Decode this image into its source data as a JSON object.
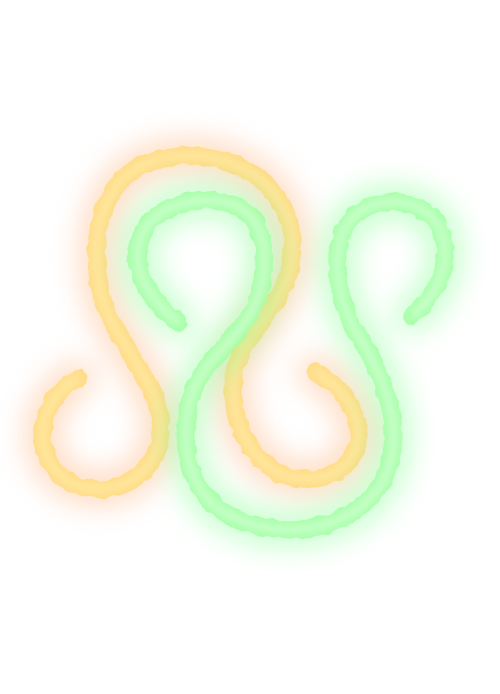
{
  "artwork": {
    "background_color": "#ffffff",
    "strokes": [
      {
        "name": "orange-glow-swirl",
        "core_color": "#fff7b8",
        "mid_color": "#ffd97a",
        "glow_color": "#ffb07a"
      },
      {
        "name": "green-glow-swirl",
        "core_color": "#f2ffee",
        "mid_color": "#9dffa0",
        "glow_color": "#7dff8c"
      }
    ]
  }
}
